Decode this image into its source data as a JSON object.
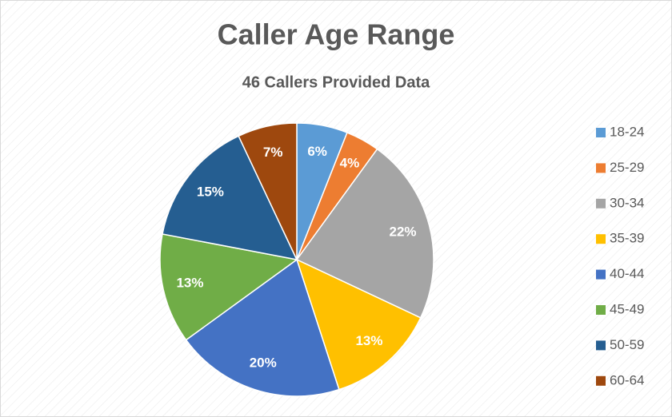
{
  "chart_data": {
    "type": "pie",
    "title": "Caller Age Range",
    "subtitle": "46 Callers Provided Data",
    "categories": [
      "18-24",
      "25-29",
      "30-34",
      "35-39",
      "40-44",
      "45-49",
      "50-59",
      "60-64"
    ],
    "values": [
      6,
      4,
      22,
      13,
      20,
      13,
      15,
      7
    ],
    "value_labels": [
      "6%",
      "4%",
      "22%",
      "13%",
      "20%",
      "13%",
      "15%",
      "7%"
    ],
    "colors": [
      "#5b9bd5",
      "#ed7d31",
      "#a5a5a5",
      "#ffc000",
      "#4472c4",
      "#70ad47",
      "#255e91",
      "#9e480e"
    ],
    "legend": "right"
  }
}
